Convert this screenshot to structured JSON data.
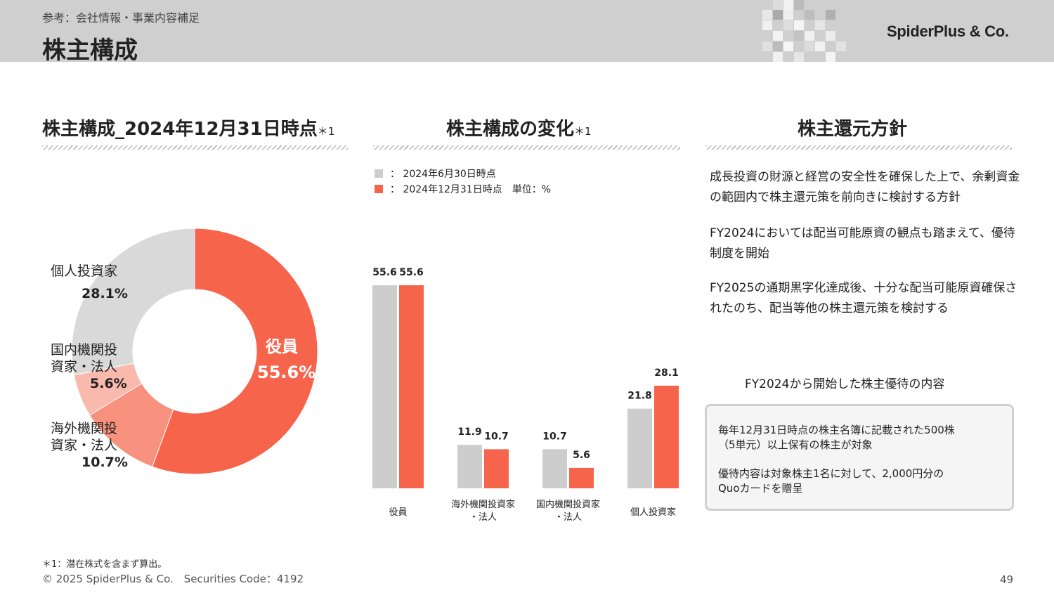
{
  "header": {
    "breadcrumb": "参考：会社情報・事業内容補足",
    "title": "株主構成",
    "logo": "SpiderPlus & Co."
  },
  "sections": {
    "composition": {
      "title": "株主構成_2024年12月31日時点",
      "note": "＊1"
    },
    "change": {
      "title": "株主構成の変化",
      "note": "＊1"
    },
    "policy": {
      "title": "株主還元方針"
    }
  },
  "pie": {
    "labels": {
      "officers": {
        "name": "役員",
        "pct": "55.6%"
      },
      "overseas": {
        "name_line1": "海外機関投",
        "name_line2": "資家・法人",
        "pct": "10.7%"
      },
      "domestic": {
        "name_line1": "国内機関投",
        "name_line2": "資家・法人",
        "pct": "5.6%"
      },
      "individual": {
        "name": "個人投資家",
        "pct": "28.1%"
      }
    }
  },
  "bar_legend": {
    "series1": "：  2024年6月30日時点",
    "series2": "：  2024年12月31日時点　単位：%"
  },
  "policy_text": {
    "p1": "成長投資の財源と経営の安全性を確保した上で、余剰資金の範囲内で株主還元策を前向きに検討する方針",
    "p2": "FY2024においては配当可能原資の観点も踏まえて、優待制度を開始",
    "p3": "FY2025の通期黒字化達成後、十分な配当可能原資確保されたのち、配当等他の株主還元策を検討する"
  },
  "perk": {
    "title": "FY2024から開始した株主優待の内容",
    "line1": "毎年12月31日時点の株主名簿に記載された500株",
    "line2": "（5単元）以上保有の株主が対象",
    "line3": "優待内容は対象株主1名に対して、2,000円分の",
    "line4": "Quoカードを贈呈"
  },
  "footer": {
    "footnote": "＊1：潜在株式を含まず算出。",
    "copyright": "© 2025 SpiderPlus & Co.　Securities Code：4192",
    "page": "49"
  },
  "colors": {
    "header_bg": "#cfcfcf",
    "gray_series": "#cdcdcd",
    "red_series": "#f7644c",
    "salmon": "#f8917d",
    "light_salmon": "#f9b9ac",
    "light_gray": "#d9d9d9"
  },
  "chart_data": [
    {
      "type": "pie",
      "title": "株主構成_2024年12月31日時点",
      "donut": true,
      "categories": [
        "役員",
        "海外機関投資家・法人",
        "国内機関投資家・法人",
        "個人投資家"
      ],
      "values": [
        55.6,
        10.7,
        5.6,
        28.1
      ],
      "colors": [
        "#f7644c",
        "#f8917d",
        "#f9b9ac",
        "#d9d9d9"
      ],
      "unit": "%"
    },
    {
      "type": "bar",
      "title": "株主構成の変化",
      "categories": [
        "役員",
        "海外機関投資家・法人",
        "国内機関投資家・法人",
        "個人投資家"
      ],
      "category_labels": [
        [
          "役員"
        ],
        [
          "海外機関投資家",
          "・法人"
        ],
        [
          "国内機関投資家",
          "・法人"
        ],
        [
          "個人投資家"
        ]
      ],
      "series": [
        {
          "name": "2024年6月30日時点",
          "values": [
            55.6,
            11.9,
            10.7,
            21.8
          ],
          "color": "#cdcdcd"
        },
        {
          "name": "2024年12月31日時点",
          "values": [
            55.6,
            10.7,
            5.6,
            28.1
          ],
          "color": "#f7644c"
        }
      ],
      "unit": "%",
      "ylim": [
        0,
        55.6
      ],
      "grid": false,
      "legend_position": "top-left"
    }
  ]
}
